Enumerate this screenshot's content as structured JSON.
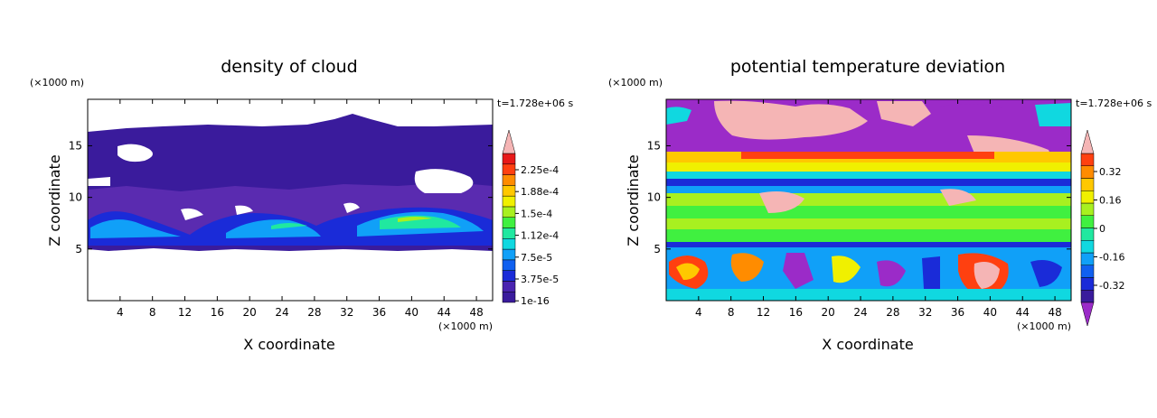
{
  "colors": {
    "bg": "#ffffff",
    "frame": "#000000",
    "palette": [
      "#3a1b9c",
      "#5a2bb0",
      "#1a2bd8",
      "#1060f0",
      "#10a0f8",
      "#10d8e0",
      "#20e8a0",
      "#40f040",
      "#a8f020",
      "#f0f000",
      "#ffc800",
      "#ff8c00",
      "#ff4010",
      "#e81818",
      "#f5b5b5"
    ]
  },
  "chart_data": [
    {
      "type": "heatmap",
      "title": "density of cloud",
      "xlabel": "X coordinate",
      "ylabel": "Z coordinate",
      "x_unit": "(×1000 m)",
      "y_unit": "(×1000 m)",
      "time_label": "t=1.728e+06 s",
      "xlim": [
        0,
        50
      ],
      "ylim": [
        0,
        19.5
      ],
      "x_ticks": [
        "4",
        "8",
        "12",
        "16",
        "20",
        "24",
        "28",
        "32",
        "36",
        "40",
        "44",
        "48"
      ],
      "x_tick_values": [
        4,
        8,
        12,
        16,
        20,
        24,
        28,
        32,
        36,
        40,
        44,
        48
      ],
      "y_ticks": [
        "5",
        "10",
        "15"
      ],
      "y_tick_values": [
        5,
        10,
        15
      ],
      "colorbar": {
        "labels": [
          "2.25e-4",
          "1.88e-4",
          "1.5e-4",
          "1.12e-4",
          "7.5e-5",
          "3.75e-5",
          "1e-16"
        ],
        "n_levels": 14,
        "extend_top": true,
        "extend_bottom": false,
        "colors": [
          "#3a1b9c",
          "#4a23b0",
          "#1a2bd8",
          "#1060f0",
          "#10a0f8",
          "#10d8e0",
          "#20e8a0",
          "#40f040",
          "#a8f020",
          "#f0f000",
          "#ffc800",
          "#ff8c00",
          "#ff4010",
          "#e81818",
          "#f5b5b5"
        ]
      }
    },
    {
      "type": "heatmap",
      "title": "potential temperature deviation",
      "xlabel": "X coordinate",
      "ylabel": "Z coordinate",
      "x_unit": "(×1000 m)",
      "y_unit": "(×1000 m)",
      "time_label": "t=1.728e+06 s",
      "xlim": [
        0,
        50
      ],
      "ylim": [
        0,
        19.5
      ],
      "x_ticks": [
        "4",
        "8",
        "12",
        "16",
        "20",
        "24",
        "28",
        "32",
        "36",
        "40",
        "44",
        "48"
      ],
      "x_tick_values": [
        4,
        8,
        12,
        16,
        20,
        24,
        28,
        32,
        36,
        40,
        44,
        48
      ],
      "y_ticks": [
        "5",
        "10",
        "15"
      ],
      "y_tick_values": [
        5,
        10,
        15
      ],
      "colorbar": {
        "labels": [
          "0.32",
          "0.16",
          "0",
          "-0.16",
          "-0.32"
        ],
        "n_levels": 12,
        "extend_top": true,
        "extend_bottom": true,
        "colors": [
          "#9b2bc8",
          "#3a1b9c",
          "#1a2bd8",
          "#1060f0",
          "#10a0f8",
          "#10d8e0",
          "#20e8a0",
          "#40f040",
          "#a8f020",
          "#f0f000",
          "#ffc800",
          "#ff8c00",
          "#ff4010",
          "#f5b5b5"
        ]
      }
    }
  ]
}
